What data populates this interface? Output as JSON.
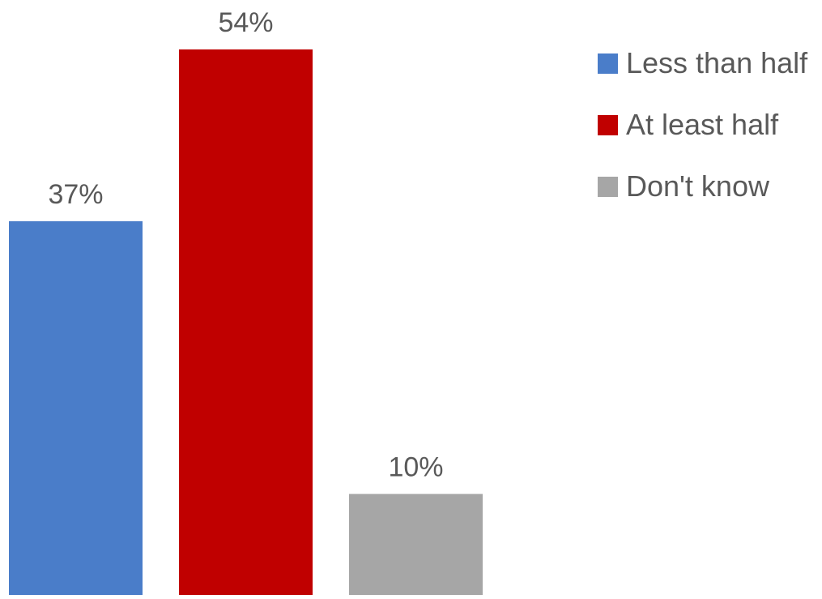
{
  "chart_data": {
    "type": "bar",
    "categories": [
      "Less than half",
      "At least half",
      "Don't know"
    ],
    "values": [
      37,
      54,
      10
    ],
    "data_labels": [
      "37%",
      "54%",
      "10%"
    ],
    "colors": [
      "#4a7dc9",
      "#c00000",
      "#a6a6a6"
    ],
    "ylim": [
      0,
      54
    ],
    "grid": false,
    "legend": {
      "placement": "top-right",
      "entries": [
        "Less than half",
        "At least half",
        "Don't know"
      ]
    }
  }
}
